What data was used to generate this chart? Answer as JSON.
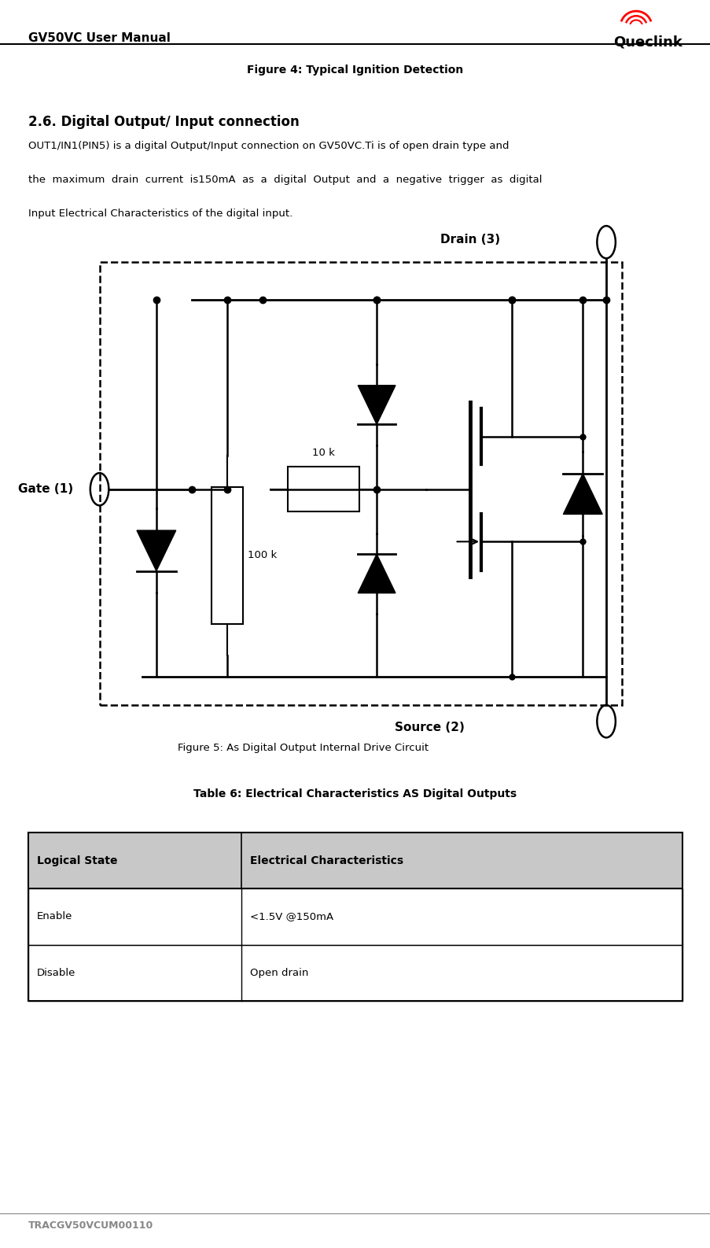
{
  "page_width": 9.04,
  "page_height": 15.86,
  "bg_color": "#ffffff",
  "header_title": "GV50VC User Manual",
  "logo_text": "Queclink",
  "footer_text": "TRACGV50VCUM00110",
  "fig4_caption": "Figure 4: Typical Ignition Detection",
  "section_title": "2.6. Digital Output/ Input connection",
  "body_line1": "OUT1/IN1(PIN5) is a digital Output/Input connection on GV50VC.Ti is of open drain type and",
  "body_line2": "the  maximum  drain  current  is150mA  as  a  digital  Output  and  a  negative  trigger  as  digital",
  "body_line3": "Input Electrical Characteristics of the digital input.",
  "fig5_caption": "Figure 5: As Digital Output Internal Drive Circuit",
  "table_title": "Table 6: Electrical Characteristics AS Digital Outputs",
  "table_headers": [
    "Logical State",
    "Electrical Characteristics"
  ],
  "table_rows": [
    [
      "Enable",
      "<1.5V @150mA"
    ],
    [
      "Disable",
      "Open drain"
    ]
  ],
  "table_header_bg": "#c8c8c8",
  "drain_label": "Drain (3)",
  "source_label": "Source (2)",
  "gate_label": "Gate (1)",
  "resistor_10k": "10 k",
  "resistor_100k": "100 k"
}
